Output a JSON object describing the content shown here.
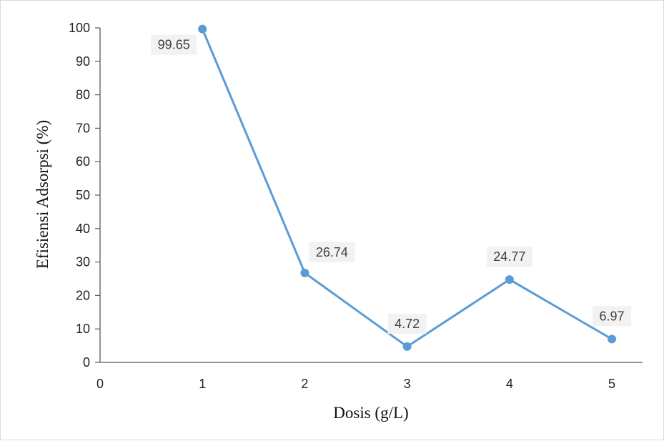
{
  "colors": {
    "series_line": "#5b9bd5",
    "axis": "#595959",
    "label_background": "#f2f2f2"
  },
  "chart_data": {
    "type": "line",
    "title": "",
    "xlabel": "Dosis (g/L)",
    "ylabel": "Efisiensi Adsorpsi (%)",
    "xlim": [
      0,
      5.3
    ],
    "ylim": [
      0,
      100
    ],
    "x_ticks": [
      0,
      1,
      2,
      3,
      4,
      5
    ],
    "y_ticks": [
      0,
      10,
      20,
      30,
      40,
      50,
      60,
      70,
      80,
      90,
      100
    ],
    "grid": false,
    "legend": "none",
    "series": [
      {
        "x": [
          1,
          2,
          3,
          4,
          5
        ],
        "values": [
          99.65,
          26.74,
          4.72,
          24.77,
          6.97
        ],
        "data_labels": [
          "99.65",
          "26.74",
          "4.72",
          "24.77",
          "6.97"
        ]
      }
    ]
  }
}
